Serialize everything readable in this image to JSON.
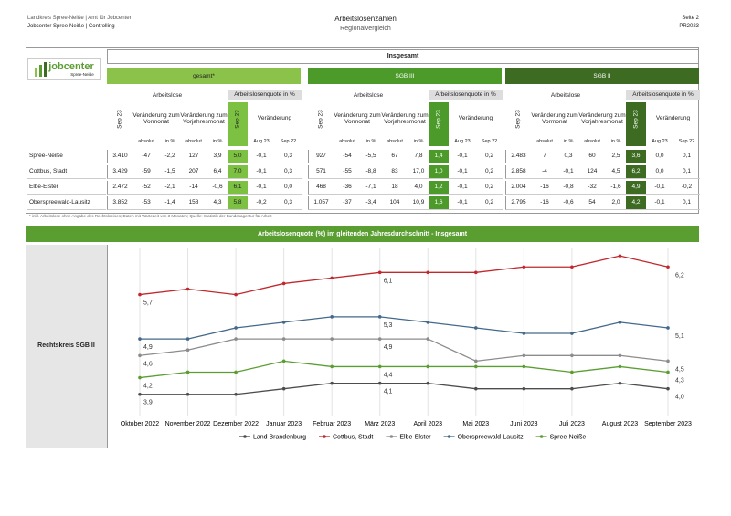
{
  "header": {
    "left_line1": "Landkreis Spree-Neiße | Amt für Jobcenter",
    "left_line2": "Jobcenter Spree-Neiße | Controlling",
    "title": "Arbeitslosenzahlen",
    "subtitle": "Regionalvergleich",
    "right_line1": "Seite 2",
    "right_line2": "PR2023"
  },
  "logo": {
    "text": "jobcenter",
    "sub": "Spree-Neiße"
  },
  "table": {
    "title": "Insgesamt",
    "groups": [
      "gesamt*",
      "SGB III",
      "SGB II"
    ],
    "headers": {
      "unemployed": "Arbeitslose",
      "rate": "Arbeitslosenquote in %",
      "month": "Sep 23",
      "prev_month": "Veränderung zum Vormonat",
      "prev_year": "Veränderung zum Vorjahresmonat",
      "change": "Veränderung",
      "absolute": "absolut",
      "percent": "in %",
      "aug": "Aug 23",
      "sep": "Sep 22"
    },
    "rows": [
      {
        "region": "Spree-Neiße",
        "cells": [
          "3.410",
          "-47",
          "-2,2",
          "127",
          "3,9",
          "5,0",
          "-0,1",
          "0,3",
          "927",
          "-54",
          "-5,5",
          "67",
          "7,8",
          "1,4",
          "-0,1",
          "0,2",
          "2.483",
          "7",
          "0,3",
          "60",
          "2,5",
          "3,6",
          "0,0",
          "0,1"
        ]
      },
      {
        "region": "Cottbus, Stadt",
        "cells": [
          "3.429",
          "-59",
          "-1,5",
          "207",
          "6,4",
          "7,0",
          "-0,1",
          "0,3",
          "571",
          "-55",
          "-8,8",
          "83",
          "17,0",
          "1,0",
          "-0,1",
          "0,2",
          "2.858",
          "-4",
          "-0,1",
          "124",
          "4,5",
          "6,2",
          "0,0",
          "0,1"
        ]
      },
      {
        "region": "Elbe-Elster",
        "cells": [
          "2.472",
          "-52",
          "-2,1",
          "-14",
          "-0,6",
          "6,1",
          "-0,1",
          "0,0",
          "468",
          "-36",
          "-7,1",
          "18",
          "4,0",
          "1,2",
          "-0,1",
          "0,2",
          "2.004",
          "-16",
          "-0,8",
          "-32",
          "-1,6",
          "4,9",
          "-0,1",
          "-0,2"
        ]
      },
      {
        "region": "Oberspreewald-Lausitz",
        "cells": [
          "3.852",
          "-53",
          "-1,4",
          "158",
          "4,3",
          "5,8",
          "-0,2",
          "0,3",
          "1.057",
          "-37",
          "-3,4",
          "104",
          "10,9",
          "1,6",
          "-0,1",
          "0,2",
          "2.795",
          "-16",
          "-0,6",
          "54",
          "2,0",
          "4,2",
          "-0,1",
          "0,1"
        ]
      }
    ],
    "footnote": "* inkl. Arbeitslose ohne Angabe des Rechtskreises; Daten mit Wartezeit von 3 Monaten; Quelle: Statistik der Bundesagentur für Arbeit"
  },
  "chart_data": {
    "type": "line",
    "title": "Arbeitslosenquote (%) im gleitenden Jahresdurchschnitt - Insgesamt",
    "side_label": "Rechtskreis SGB II",
    "categories": [
      "Oktober 2022",
      "November 2022",
      "Dezember 2022",
      "Januar 2023",
      "Februar 2023",
      "März 2023",
      "April 2023",
      "Mai 2023",
      "Juni 2023",
      "Juli 2023",
      "August 2023",
      "September 2023"
    ],
    "ylim": [
      3.5,
      6.6
    ],
    "series": [
      {
        "name": "Land Brandenburg",
        "color": "#4d4d4d",
        "values": [
          3.9,
          3.9,
          3.9,
          4.0,
          4.1,
          4.1,
          4.1,
          4.0,
          4.0,
          4.0,
          4.1,
          4.0
        ],
        "value_labels": [
          "3,9",
          null,
          null,
          null,
          null,
          "4,1",
          null,
          null,
          null,
          null,
          null,
          "4,0"
        ]
      },
      {
        "name": "Cottbus, Stadt",
        "color": "#c0282d",
        "values": [
          5.7,
          5.8,
          5.7,
          5.9,
          6.0,
          6.1,
          6.1,
          6.1,
          6.2,
          6.2,
          6.4,
          6.2
        ],
        "value_labels": [
          "5,7",
          null,
          null,
          null,
          null,
          "6,1",
          null,
          null,
          null,
          null,
          null,
          "6,2"
        ]
      },
      {
        "name": "Elbe-Elster",
        "color": "#8c8c8c",
        "values": [
          4.6,
          4.7,
          4.9,
          4.9,
          4.9,
          4.9,
          4.9,
          4.5,
          4.6,
          4.6,
          4.6,
          4.5
        ],
        "value_labels": [
          "4,6",
          null,
          null,
          null,
          null,
          "4,9",
          null,
          null,
          null,
          null,
          null,
          "4,5"
        ]
      },
      {
        "name": "Oberspreewald-Lausitz",
        "color": "#44698a",
        "values": [
          4.9,
          4.9,
          5.1,
          5.2,
          5.3,
          5.3,
          5.2,
          5.1,
          5.0,
          5.0,
          5.2,
          5.1
        ],
        "value_labels": [
          "4,9",
          null,
          null,
          null,
          null,
          "5,3",
          null,
          null,
          null,
          null,
          null,
          "5,1"
        ]
      },
      {
        "name": "Spree-Neiße",
        "color": "#5a9e32",
        "values": [
          4.2,
          4.3,
          4.3,
          4.5,
          4.4,
          4.4,
          4.4,
          4.4,
          4.4,
          4.3,
          4.4,
          4.3
        ],
        "value_labels": [
          "4,2",
          null,
          null,
          null,
          null,
          "4,4",
          null,
          null,
          null,
          null,
          null,
          "4,3"
        ]
      }
    ]
  }
}
